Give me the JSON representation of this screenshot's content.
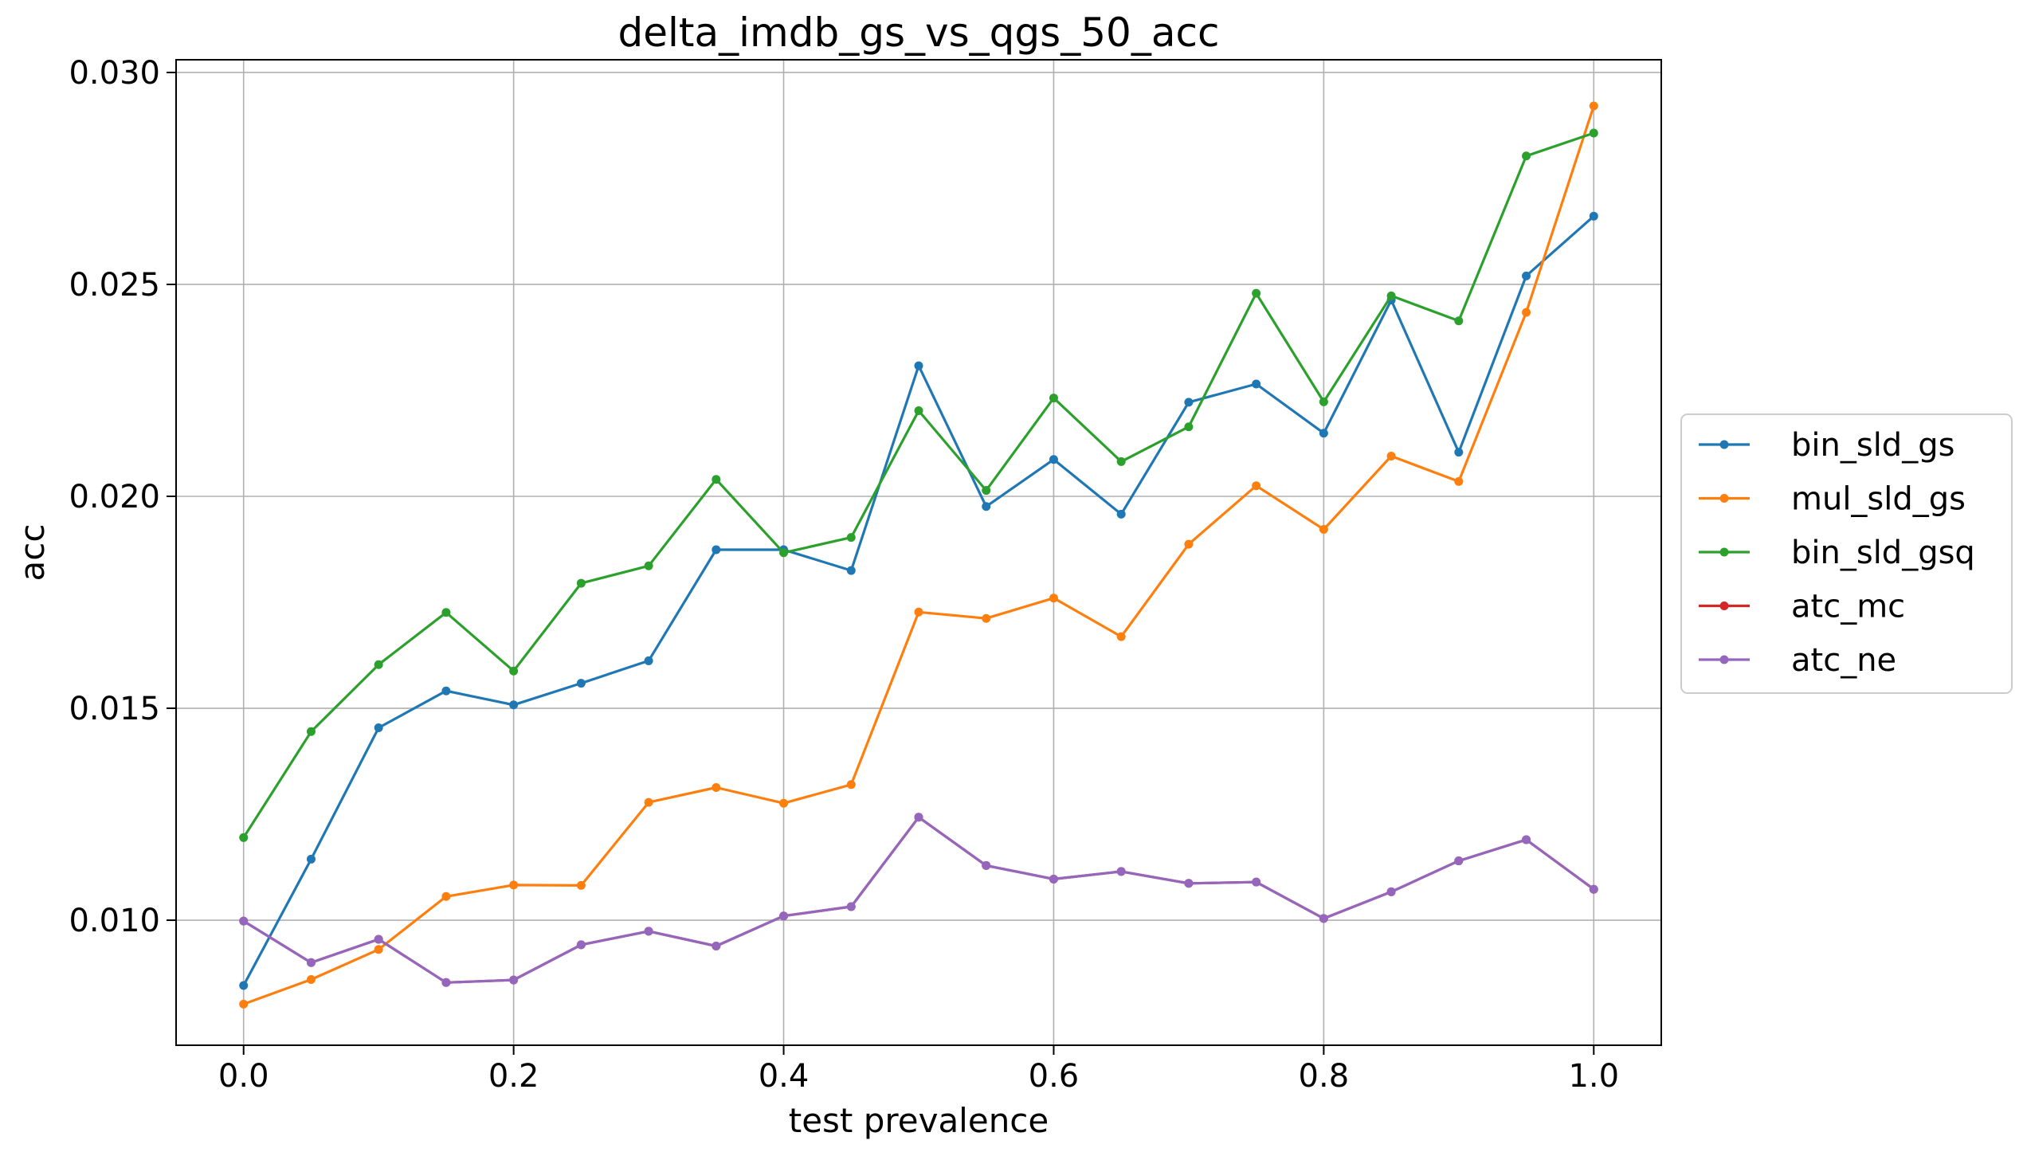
{
  "chart_data": {
    "type": "line",
    "title": "delta_imdb_gs_vs_qgs_50_acc",
    "xlabel": "test prevalence",
    "ylabel": "acc",
    "xlim": [
      -0.05,
      1.05
    ],
    "ylim": [
      0.00705,
      0.0303
    ],
    "xticks": [
      0.0,
      0.2,
      0.4,
      0.6,
      0.8,
      1.0
    ],
    "xtick_labels": [
      "0.0",
      "0.2",
      "0.4",
      "0.6",
      "0.8",
      "1.0"
    ],
    "yticks": [
      0.01,
      0.015,
      0.02,
      0.025,
      0.03
    ],
    "ytick_labels": [
      "0.010",
      "0.015",
      "0.020",
      "0.025",
      "0.030"
    ],
    "grid": true,
    "legend_position": "right",
    "x": [
      0.0,
      0.05,
      0.1,
      0.15,
      0.2,
      0.25,
      0.3,
      0.35,
      0.4,
      0.45,
      0.5,
      0.55,
      0.6,
      0.65,
      0.7,
      0.75,
      0.8,
      0.85,
      0.9,
      0.95,
      1.0
    ],
    "series": [
      {
        "name": "bin_sld_gs",
        "color": "#1f77b4",
        "values": [
          0.00846,
          0.01144,
          0.01454,
          0.01541,
          0.01508,
          0.01559,
          0.01612,
          0.01874,
          0.01874,
          0.01825,
          0.02308,
          0.01976,
          0.02087,
          0.01958,
          0.02222,
          0.02265,
          0.02149,
          0.02463,
          0.02104,
          0.0252,
          0.02661
        ]
      },
      {
        "name": "mul_sld_gs",
        "color": "#ff7f0e",
        "values": [
          0.00802,
          0.0086,
          0.00931,
          0.01056,
          0.01083,
          0.01082,
          0.01278,
          0.01313,
          0.01276,
          0.0132,
          0.01727,
          0.01712,
          0.0176,
          0.01669,
          0.01887,
          0.02025,
          0.01922,
          0.02095,
          0.02035,
          0.02434,
          0.02921
        ]
      },
      {
        "name": "bin_sld_gsq",
        "color": "#2ca02c",
        "values": [
          0.01195,
          0.01445,
          0.01603,
          0.01726,
          0.01588,
          0.01795,
          0.01836,
          0.0204,
          0.01867,
          0.01903,
          0.02202,
          0.02014,
          0.02232,
          0.02082,
          0.02164,
          0.02479,
          0.02223,
          0.02473,
          0.02414,
          0.02803,
          0.02857
        ]
      },
      {
        "name": "atc_mc",
        "color": "#d62728",
        "values": [
          0.00998,
          0.009,
          0.00955,
          0.00853,
          0.00859,
          0.00942,
          0.00974,
          0.00939,
          0.0101,
          0.01032,
          0.01243,
          0.01129,
          0.01097,
          0.01115,
          0.01087,
          0.0109,
          0.01004,
          0.01067,
          0.0114,
          0.0119,
          0.01073
        ]
      },
      {
        "name": "atc_ne",
        "color": "#9467bd",
        "values": [
          0.00998,
          0.009,
          0.00955,
          0.00853,
          0.00859,
          0.00942,
          0.00974,
          0.00939,
          0.0101,
          0.01032,
          0.01243,
          0.01129,
          0.01097,
          0.01115,
          0.01087,
          0.0109,
          0.01004,
          0.01067,
          0.0114,
          0.0119,
          0.01073
        ]
      }
    ]
  }
}
